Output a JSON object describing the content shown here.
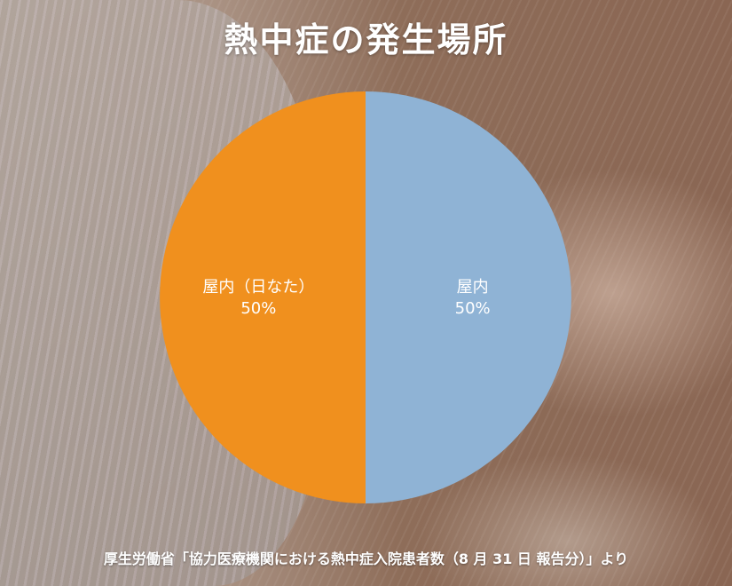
{
  "title": "熱中症の発生場所",
  "source": "厚生労働省「協力医療機関における熱中症入院患者数（8 月 31 日 報告分）」より",
  "colors": {
    "slice_orange": "#f0901e",
    "slice_blue": "#8fb3d5",
    "text": "#ffffff"
  },
  "chart_data": {
    "type": "pie",
    "title": "熱中症の発生場所",
    "slices": [
      {
        "label": "屋内",
        "percent_label": "50%",
        "value": 50,
        "color": "#8fb3d5"
      },
      {
        "label": "屋内（日なた）",
        "percent_label": "50%",
        "value": 50,
        "color": "#f0901e"
      }
    ]
  }
}
